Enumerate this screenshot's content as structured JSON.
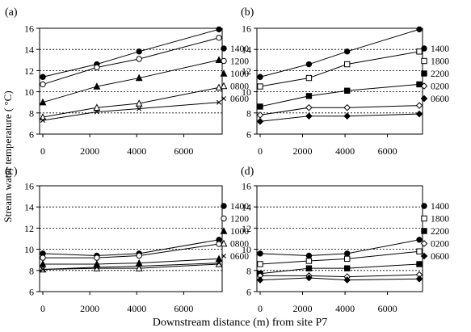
{
  "figure": {
    "ylabel": "Stream water temperature ( °C)",
    "xlabel": "Downstream distance (m) from site P7"
  },
  "chart_data": [
    {
      "type": "line",
      "panel_label": "(a)",
      "x": [
        0,
        2300,
        4100,
        7500
      ],
      "xlim": [
        0,
        7500
      ],
      "xticks": [
        0,
        2000,
        4000,
        6000
      ],
      "ylim": [
        6,
        16
      ],
      "yticks": [
        6,
        8,
        10,
        12,
        14,
        16
      ],
      "grid": "horizontal dashed",
      "legend_position": "right",
      "series": [
        {
          "name": "1400",
          "marker": "filled-circle",
          "values": [
            11.4,
            12.6,
            13.8,
            15.9
          ]
        },
        {
          "name": "1200",
          "marker": "open-circle",
          "values": [
            10.7,
            12.3,
            13.1,
            15.1
          ]
        },
        {
          "name": "1000",
          "marker": "filled-triangle",
          "values": [
            9.0,
            10.5,
            11.3,
            13.0
          ]
        },
        {
          "name": "0800",
          "marker": "open-triangle",
          "values": [
            7.6,
            8.5,
            8.9,
            10.4
          ]
        },
        {
          "name": "0600",
          "marker": "cross",
          "values": [
            7.3,
            8.1,
            8.4,
            9.0
          ]
        }
      ]
    },
    {
      "type": "line",
      "panel_label": "(b)",
      "x": [
        0,
        2300,
        4100,
        7500
      ],
      "xlim": [
        0,
        7500
      ],
      "xticks": [
        0,
        2000,
        4000,
        6000
      ],
      "ylim": [
        6,
        16
      ],
      "yticks": [
        6,
        8,
        10,
        12,
        14,
        16
      ],
      "grid": "horizontal dashed",
      "legend_position": "right",
      "series": [
        {
          "name": "1400",
          "marker": "filled-circle",
          "values": [
            11.4,
            12.6,
            13.8,
            15.9
          ]
        },
        {
          "name": "1800",
          "marker": "open-square",
          "values": [
            10.5,
            11.3,
            12.6,
            13.8
          ]
        },
        {
          "name": "2200",
          "marker": "filled-square",
          "values": [
            8.6,
            9.6,
            10.1,
            10.7
          ]
        },
        {
          "name": "0200",
          "marker": "open-diamond",
          "values": [
            7.8,
            8.5,
            8.5,
            8.7
          ]
        },
        {
          "name": "0600",
          "marker": "filled-diamond",
          "values": [
            7.2,
            7.7,
            7.7,
            7.9
          ]
        }
      ]
    },
    {
      "type": "line",
      "panel_label": "(c)",
      "x": [
        0,
        2300,
        4100,
        7500
      ],
      "xlim": [
        0,
        7500
      ],
      "xticks": [
        0,
        2000,
        4000,
        6000
      ],
      "ylim": [
        6,
        16
      ],
      "yticks": [
        6,
        8,
        10,
        12,
        14,
        16
      ],
      "grid": "horizontal dashed",
      "legend_position": "right",
      "series": [
        {
          "name": "1400",
          "marker": "filled-circle",
          "values": [
            9.6,
            9.4,
            9.6,
            10.9
          ]
        },
        {
          "name": "1200",
          "marker": "open-circle",
          "values": [
            9.2,
            9.2,
            9.4,
            10.5
          ]
        },
        {
          "name": "1000",
          "marker": "filled-triangle",
          "values": [
            8.6,
            8.6,
            8.7,
            9.1
          ]
        },
        {
          "name": "0800",
          "marker": "open-triangle",
          "values": [
            8.1,
            8.2,
            8.2,
            8.6
          ]
        },
        {
          "name": "0600",
          "marker": "cross",
          "values": [
            8.1,
            8.3,
            8.4,
            8.7
          ]
        }
      ]
    },
    {
      "type": "line",
      "panel_label": "(d)",
      "x": [
        0,
        2300,
        4100,
        7500
      ],
      "xlim": [
        0,
        7500
      ],
      "xticks": [
        0,
        2000,
        4000,
        6000
      ],
      "ylim": [
        6,
        16
      ],
      "yticks": [
        6,
        8,
        10,
        12,
        14,
        16
      ],
      "grid": "horizontal dashed",
      "legend_position": "right",
      "series": [
        {
          "name": "1400",
          "marker": "filled-circle",
          "values": [
            9.6,
            9.4,
            9.6,
            10.9
          ]
        },
        {
          "name": "1800",
          "marker": "open-square",
          "values": [
            8.6,
            8.9,
            9.1,
            9.8
          ]
        },
        {
          "name": "2200",
          "marker": "filled-square",
          "values": [
            7.7,
            8.2,
            8.2,
            8.6
          ]
        },
        {
          "name": "0200",
          "marker": "open-diamond",
          "values": [
            7.5,
            7.5,
            7.4,
            7.6
          ]
        },
        {
          "name": "0600",
          "marker": "filled-diamond",
          "values": [
            7.1,
            7.3,
            7.1,
            7.2
          ]
        }
      ]
    }
  ]
}
